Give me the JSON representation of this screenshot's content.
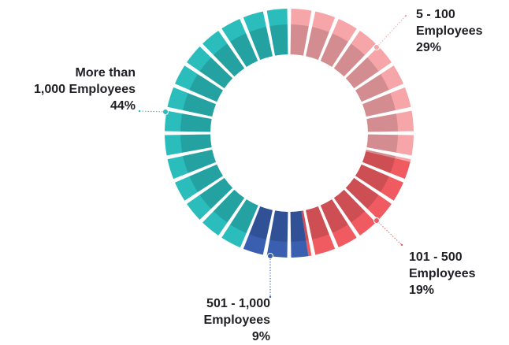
{
  "chart_data": {
    "type": "pie",
    "variant": "segmented-donut",
    "legend_placement": "none",
    "slices": [
      {
        "name_line1": "5 - 100",
        "name_line2": "Employees",
        "percent_label": "29%",
        "value": 29,
        "color": "#f6a5a8"
      },
      {
        "name_line1": "101 - 500",
        "name_line2": "Employees",
        "percent_label": "19%",
        "value": 19,
        "color": "#ef5b61"
      },
      {
        "name_line1": "501 - 1,000",
        "name_line2": "Employees",
        "percent_label": "9%",
        "value": 9,
        "color": "#3a5fb0"
      },
      {
        "name_line1": "More than",
        "name_line2": "1,000 Employees",
        "percent_label": "44%",
        "value": 44,
        "color": "#2bbcbc"
      }
    ]
  }
}
